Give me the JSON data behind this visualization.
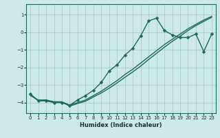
{
  "xlabel": "Humidex (Indice chaleur)",
  "ylabel": "",
  "xlim": [
    -0.5,
    23.5
  ],
  "ylim": [
    -4.6,
    1.6
  ],
  "yticks": [
    1,
    0,
    -1,
    -2,
    -3,
    -4
  ],
  "xticks": [
    0,
    1,
    2,
    3,
    4,
    5,
    6,
    7,
    8,
    9,
    10,
    11,
    12,
    13,
    14,
    15,
    16,
    17,
    18,
    19,
    20,
    21,
    22,
    23
  ],
  "background_color": "#cce8e8",
  "grid_color": "#aacccc",
  "line_color": "#1a6b5a",
  "line1_x": [
    0,
    1,
    2,
    3,
    4,
    5,
    6,
    7,
    8,
    9,
    10,
    11,
    12,
    13,
    14,
    15,
    16,
    17,
    18,
    19,
    20,
    21,
    22,
    23
  ],
  "line1_y": [
    -3.5,
    -3.9,
    -3.9,
    -4.0,
    -4.0,
    -4.15,
    -3.85,
    -3.6,
    -3.3,
    -2.85,
    -2.2,
    -1.85,
    -1.3,
    -0.9,
    -0.2,
    0.65,
    0.8,
    0.1,
    -0.15,
    -0.3,
    -0.3,
    -0.1,
    -1.1,
    -0.1
  ],
  "line2_x": [
    0,
    1,
    2,
    3,
    4,
    5,
    6,
    7,
    8,
    9,
    10,
    11,
    12,
    13,
    14,
    15,
    16,
    17,
    18,
    19,
    20,
    21,
    22,
    23
  ],
  "line2_y": [
    -3.6,
    -3.85,
    -3.85,
    -3.95,
    -3.95,
    -4.15,
    -4.0,
    -3.85,
    -3.6,
    -3.35,
    -3.05,
    -2.75,
    -2.4,
    -2.1,
    -1.75,
    -1.4,
    -1.05,
    -0.7,
    -0.4,
    -0.1,
    0.2,
    0.45,
    0.7,
    0.9
  ],
  "line3_x": [
    0,
    1,
    2,
    3,
    4,
    5,
    6,
    7,
    8,
    9,
    10,
    11,
    12,
    13,
    14,
    15,
    16,
    17,
    18,
    19,
    20,
    21,
    22,
    23
  ],
  "line3_y": [
    -3.55,
    -3.88,
    -3.88,
    -3.97,
    -3.97,
    -4.2,
    -4.05,
    -3.92,
    -3.68,
    -3.45,
    -3.18,
    -2.88,
    -2.56,
    -2.25,
    -1.92,
    -1.55,
    -1.2,
    -0.85,
    -0.52,
    -0.22,
    0.1,
    0.38,
    0.62,
    0.85
  ],
  "marker": "D",
  "markersize": 2.5,
  "linewidth": 1.0
}
